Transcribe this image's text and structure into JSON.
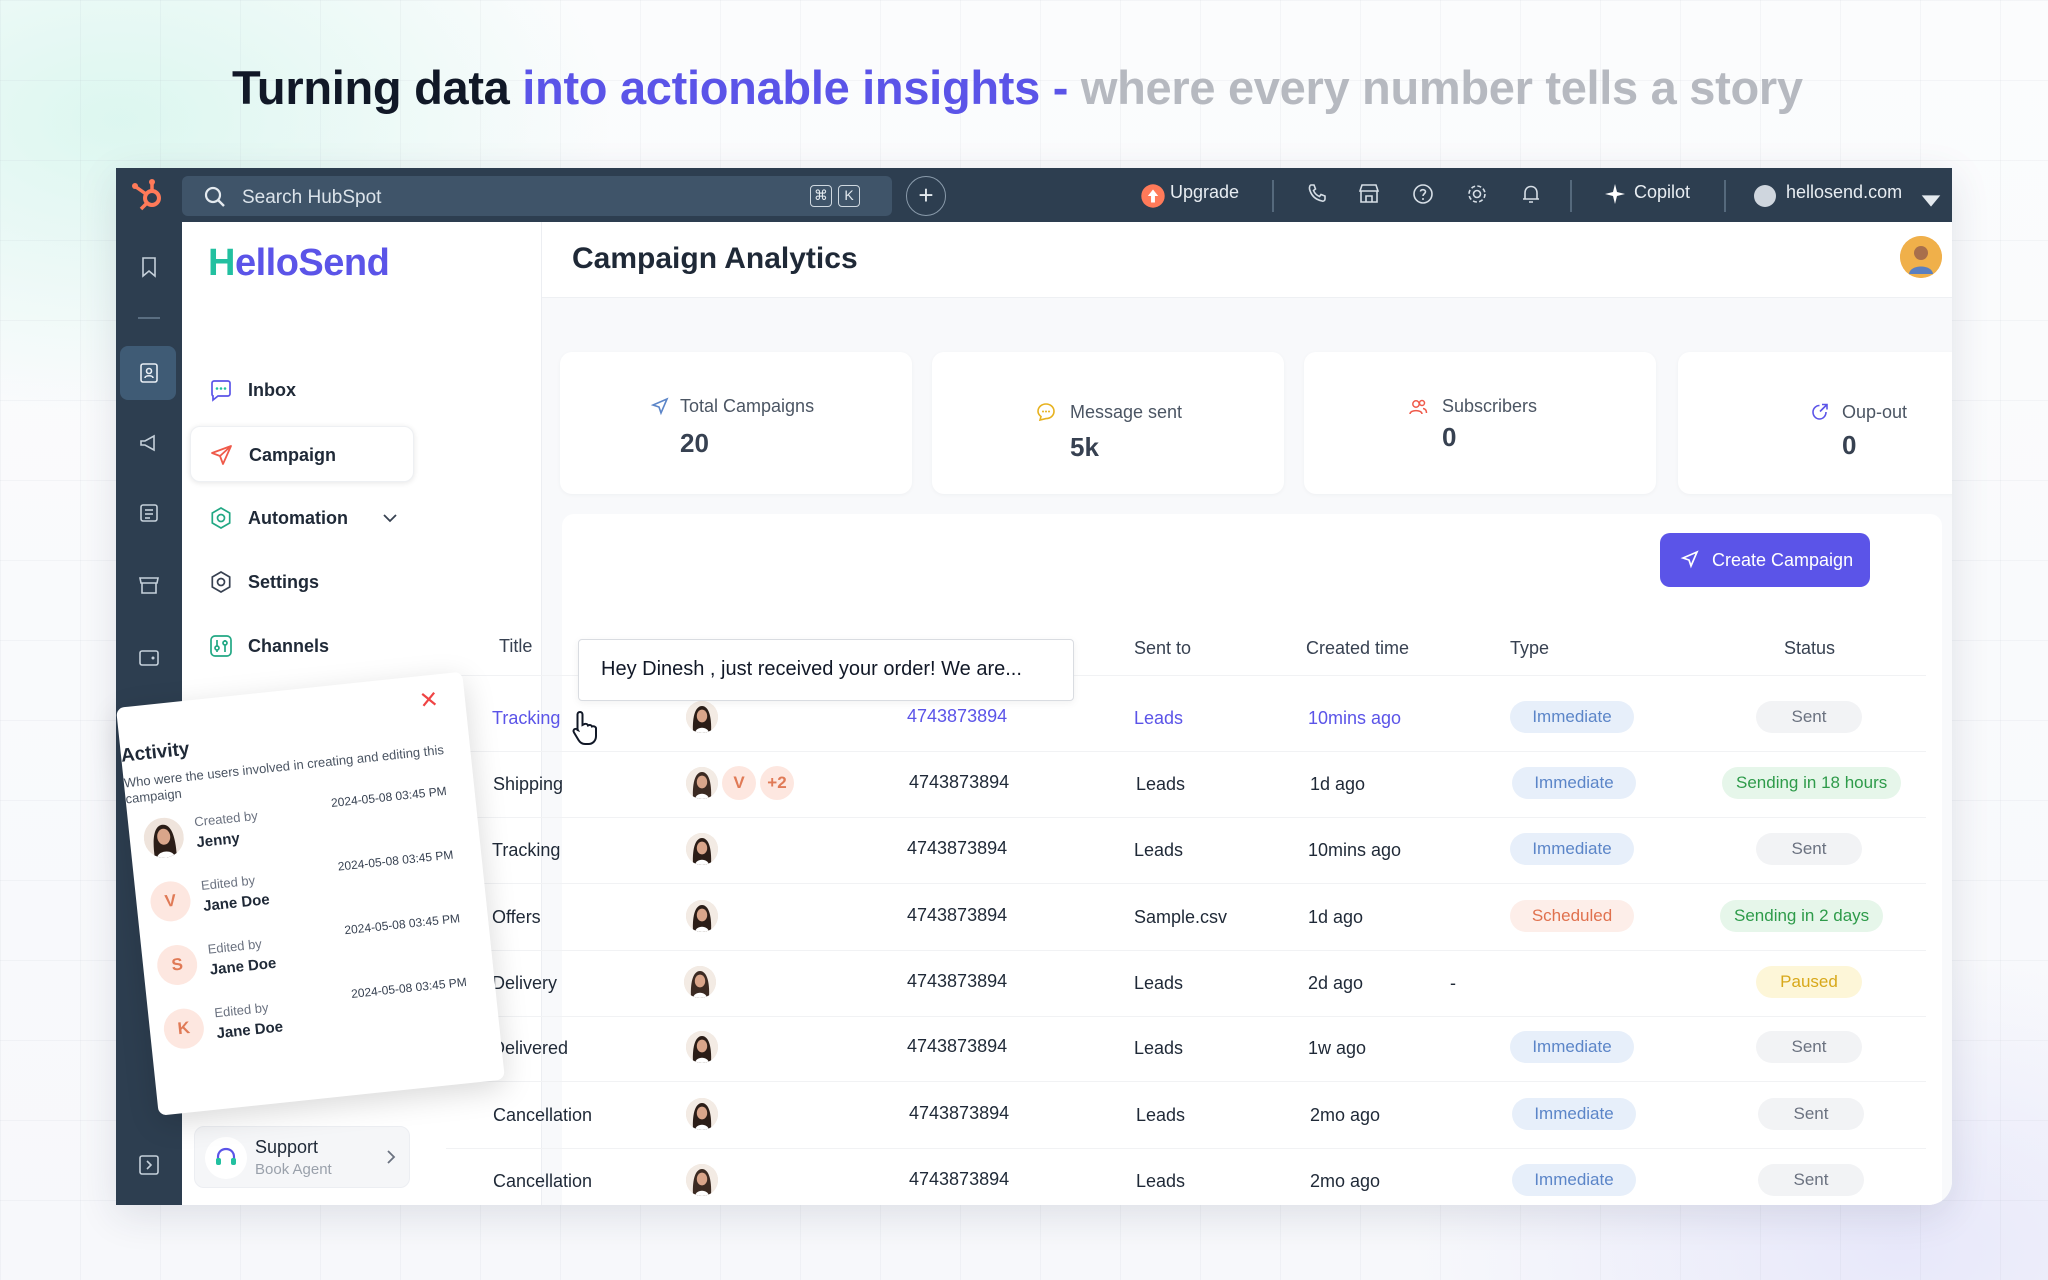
{
  "headline": {
    "part1": "Turning data",
    "part2": "into actionable insights -",
    "part3": "where every number tells a story"
  },
  "topbar": {
    "search_placeholder": "Search HubSpot",
    "shortcut_key1": "⌘",
    "shortcut_key2": "K",
    "upgrade_label": "Upgrade",
    "copilot_label": "Copilot",
    "account_label": "hellosend.com",
    "accent": "#ff7a59"
  },
  "brand": {
    "first": "H",
    "rest": "elloSend",
    "color_primary": "#5b54e8",
    "color_secondary": "#22c0a0"
  },
  "sidebar": {
    "items": [
      {
        "label": "Inbox",
        "icon": "inbox-icon"
      },
      {
        "label": "Campaign",
        "icon": "send-icon"
      },
      {
        "label": "Automation",
        "icon": "automation-icon"
      },
      {
        "label": "Settings",
        "icon": "gear-icon"
      },
      {
        "label": "Channels",
        "icon": "channels-icon"
      }
    ],
    "support": {
      "title": "Support",
      "subtitle": "Book Agent"
    }
  },
  "page": {
    "title": "Campaign Analytics"
  },
  "stats": [
    {
      "label": "Total Campaigns",
      "value": "20"
    },
    {
      "label": "Message sent",
      "value": "5k"
    },
    {
      "label": "Subscribers",
      "value": "0"
    },
    {
      "label": "Oup-out",
      "value": "0"
    }
  ],
  "create_button": "Create Campaign",
  "table": {
    "headers": {
      "title": "Title",
      "sent_to": "Sent to",
      "created": "Created time",
      "type": "Type",
      "status": "Status"
    },
    "rows": [
      {
        "title": "Tracking",
        "phone": "4743873894",
        "sent_to": "Leads",
        "created": "10mins ago",
        "type": "Immediate",
        "status": "Sent"
      },
      {
        "title": "Shipping",
        "extra1": "V",
        "extra2": "+2",
        "phone": "4743873894",
        "sent_to": "Leads",
        "created": "1d ago",
        "type": "Immediate",
        "status": "Sending in 18 hours"
      },
      {
        "title": "Tracking",
        "phone": "4743873894",
        "sent_to": "Leads",
        "created": "10mins ago",
        "type": "Immediate",
        "status": "Sent"
      },
      {
        "title": "Offers",
        "phone": "4743873894",
        "sent_to": "Sample.csv",
        "created": "1d ago",
        "type": "Scheduled",
        "status": "Sending in 2 days"
      },
      {
        "title": "Delivery",
        "phone": "4743873894",
        "sent_to": "Leads",
        "created": "2d ago",
        "type": "-",
        "status": "Paused"
      },
      {
        "title": "Delivered",
        "phone": "4743873894",
        "sent_to": "Leads",
        "created": "1w ago",
        "type": "Immediate",
        "status": "Sent"
      },
      {
        "title": "Cancellation",
        "phone": "4743873894",
        "sent_to": "Leads",
        "created": "2mo ago",
        "type": "Immediate",
        "status": "Sent"
      },
      {
        "title": "Cancellation",
        "phone": "4743873894",
        "sent_to": "Leads",
        "created": "2mo ago",
        "type": "Immediate",
        "status": "Sent"
      }
    ]
  },
  "tooltip": "Hey Dinesh ,  just received your order! We are...",
  "activity": {
    "title": "Activity",
    "subtitle": "Who were the users involved in creating and editing this campaign",
    "entries": [
      {
        "label": "Created by",
        "name": "Jenny",
        "time": "2024-05-08 03:45 PM"
      },
      {
        "label": "Edited by",
        "name": "Jane Doe",
        "letter": "V",
        "time": "2024-05-08 03:45 PM"
      },
      {
        "label": "Edited by",
        "name": "Jane Doe",
        "letter": "S",
        "time": "2024-05-08 03:45 PM"
      },
      {
        "label": "Edited by",
        "name": "Jane Doe",
        "letter": "K",
        "time": "2024-05-08 03:45 PM"
      }
    ]
  }
}
